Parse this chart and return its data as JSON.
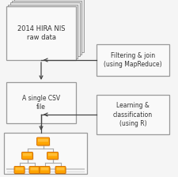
{
  "bg_color": "#f5f5f5",
  "box1_text": "2014 HIRA NIS\nraw data",
  "box2_text": "A single CSV\nfile",
  "box3_text": "Filtering & join\n(using MapReduce)",
  "box4_text": "Learning &\nclassification\n(using R)",
  "border_color": "#999999",
  "text_color": "#333333",
  "arrow_color": "#444444",
  "orange_light": "#FFB300",
  "orange_mid": "#FFA000",
  "orange_dark": "#E65100",
  "gray_connector": "#999999",
  "stack_color": "#e8e8e8",
  "box_fc": "#f9f9f9"
}
